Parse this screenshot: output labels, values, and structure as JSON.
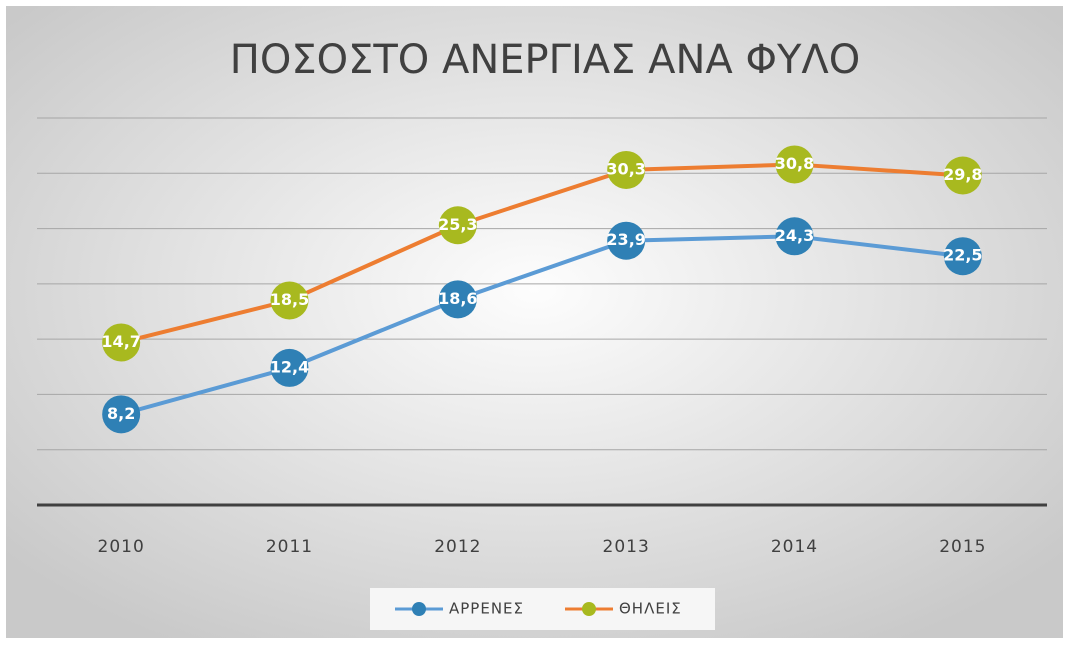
{
  "chart_data": {
    "type": "line",
    "title": "ΠΟΣΟΣΤΟ ΑΝΕΡΓΙΑΣ ΑΝΑ ΦΥΛΟ",
    "categories": [
      "2010",
      "2011",
      "2012",
      "2013",
      "2014",
      "2015"
    ],
    "series": [
      {
        "name": "ΑΡΡΕΝΕΣ",
        "color": "#5b9bd5",
        "marker_color": "#2f80b5",
        "values": [
          8.2,
          12.4,
          18.6,
          23.9,
          24.3,
          22.5
        ],
        "value_labels": [
          "8,2",
          "12,4",
          "18,6",
          "23,9",
          "24,3",
          "22,5"
        ]
      },
      {
        "name": "ΘΗΛΕΙΣ",
        "color": "#ed7d31",
        "marker_color": "#a8b91f",
        "values": [
          14.7,
          18.5,
          25.3,
          30.3,
          30.8,
          29.8
        ],
        "value_labels": [
          "14,7",
          "18,5",
          "25,3",
          "30,3",
          "30,8",
          "29,8"
        ]
      }
    ],
    "ylim": [
      0,
      35
    ],
    "yticks": [
      0,
      5,
      10,
      15,
      20,
      25,
      30,
      35
    ],
    "grid": true,
    "legend": "bottom"
  }
}
